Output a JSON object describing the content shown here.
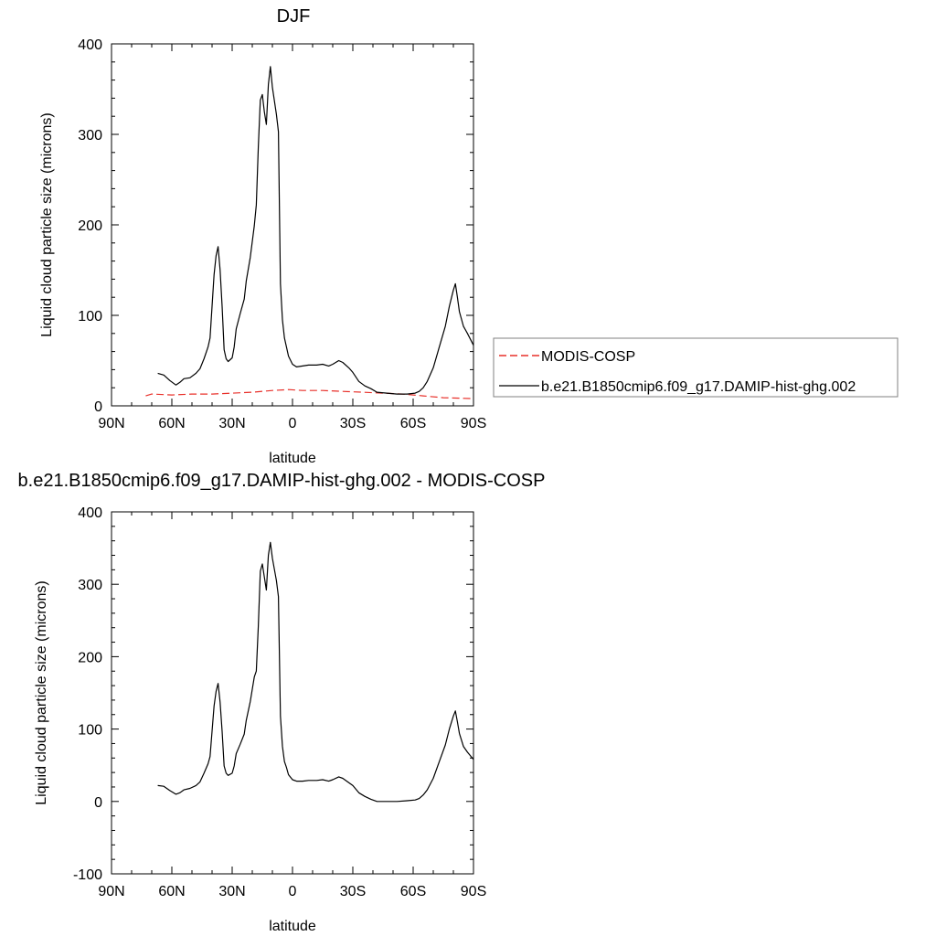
{
  "chart_data": [
    {
      "type": "line",
      "title": "DJF",
      "xlabel": "latitude",
      "ylabel": "Liquid cloud particle size (microns)",
      "xlim": [
        -90,
        90
      ],
      "ylim": [
        0,
        400
      ],
      "x_ticks": [
        -90,
        -60,
        -30,
        0,
        30,
        60,
        90
      ],
      "x_tick_labels": [
        "90N",
        "60N",
        "30N",
        "0",
        "30S",
        "60S",
        "90S"
      ],
      "y_ticks": [
        0,
        100,
        200,
        300,
        400
      ],
      "y_tick_labels": [
        "0",
        "100",
        "200",
        "300",
        "400"
      ],
      "legend": "outside-right",
      "series": [
        {
          "name": "MODIS-COSP",
          "color": "#e8302a",
          "style": "dashed",
          "points": [
            [
              -73,
              11
            ],
            [
              -70,
              13
            ],
            [
              -60,
              12
            ],
            [
              -50,
              13
            ],
            [
              -40,
              13
            ],
            [
              -30,
              14
            ],
            [
              -20,
              15
            ],
            [
              -10,
              17
            ],
            [
              -2,
              18
            ],
            [
              5,
              17
            ],
            [
              15,
              17
            ],
            [
              25,
              16
            ],
            [
              35,
              15
            ],
            [
              45,
              14
            ],
            [
              55,
              13
            ],
            [
              65,
              11
            ],
            [
              75,
              9
            ],
            [
              90,
              8
            ]
          ]
        },
        {
          "name": "b.e21.B1850cmip6.f09_g17.DAMIP-hist-ghg.002",
          "color": "#000000",
          "style": "solid",
          "points": [
            [
              -67,
              36
            ],
            [
              -64,
              34
            ],
            [
              -61,
              28
            ],
            [
              -58,
              23
            ],
            [
              -56,
              26
            ],
            [
              -54,
              30
            ],
            [
              -51,
              31
            ],
            [
              -48,
              36
            ],
            [
              -46,
              41
            ],
            [
              -44,
              52
            ],
            [
              -42,
              65
            ],
            [
              -41,
              75
            ],
            [
              -40,
              110
            ],
            [
              -39,
              145
            ],
            [
              -38,
              166
            ],
            [
              -37,
              176
            ],
            [
              -36,
              150
            ],
            [
              -35,
              110
            ],
            [
              -34,
              62
            ],
            [
              -33,
              52
            ],
            [
              -32,
              49
            ],
            [
              -30,
              53
            ],
            [
              -29,
              65
            ],
            [
              -28,
              85
            ],
            [
              -26,
              102
            ],
            [
              -24,
              118
            ],
            [
              -23,
              138
            ],
            [
              -21,
              164
            ],
            [
              -19,
              199
            ],
            [
              -18,
              222
            ],
            [
              -17,
              286
            ],
            [
              -16,
              338
            ],
            [
              -15,
              344
            ],
            [
              -14,
              325
            ],
            [
              -13,
              311
            ],
            [
              -12,
              355
            ],
            [
              -11,
              375
            ],
            [
              -10,
              352
            ],
            [
              -8,
              322
            ],
            [
              -7,
              303
            ],
            [
              -6,
              135
            ],
            [
              -5,
              95
            ],
            [
              -4,
              75
            ],
            [
              -3,
              65
            ],
            [
              -2,
              55
            ],
            [
              0,
              46
            ],
            [
              2,
              43
            ],
            [
              5,
              44
            ],
            [
              8,
              45
            ],
            [
              12,
              45
            ],
            [
              15,
              46
            ],
            [
              18,
              44
            ],
            [
              20,
              46
            ],
            [
              23,
              50
            ],
            [
              25,
              48
            ],
            [
              28,
              42
            ],
            [
              30,
              37
            ],
            [
              33,
              27
            ],
            [
              36,
              22
            ],
            [
              39,
              19
            ],
            [
              42,
              15
            ],
            [
              47,
              14
            ],
            [
              52,
              13
            ],
            [
              57,
              13
            ],
            [
              61,
              14
            ],
            [
              63,
              16
            ],
            [
              65,
              20
            ],
            [
              67,
              27
            ],
            [
              70,
              42
            ],
            [
              73,
              65
            ],
            [
              76,
              88
            ],
            [
              78,
              110
            ],
            [
              80,
              128
            ],
            [
              81,
              135
            ],
            [
              82,
              120
            ],
            [
              83,
              104
            ],
            [
              85,
              88
            ],
            [
              87,
              80
            ],
            [
              90,
              67
            ]
          ]
        }
      ]
    },
    {
      "type": "line",
      "title": "b.e21.B1850cmip6.f09_g17.DAMIP-hist-ghg.002 - MODIS-COSP",
      "xlabel": "latitude",
      "ylabel": "Liquid cloud particle size (microns)",
      "xlim": [
        -90,
        90
      ],
      "ylim": [
        -100,
        400
      ],
      "x_ticks": [
        -90,
        -60,
        -30,
        0,
        30,
        60,
        90
      ],
      "x_tick_labels": [
        "90N",
        "60N",
        "30N",
        "0",
        "30S",
        "60S",
        "90S"
      ],
      "y_ticks": [
        -100,
        0,
        100,
        200,
        300,
        400
      ],
      "y_tick_labels": [
        "-100",
        "0",
        "100",
        "200",
        "300",
        "400"
      ],
      "series": [
        {
          "color": "#000000",
          "style": "solid",
          "points": [
            [
              -67,
              22
            ],
            [
              -64,
              21
            ],
            [
              -61,
              15
            ],
            [
              -58,
              10
            ],
            [
              -56,
              12
            ],
            [
              -54,
              16
            ],
            [
              -51,
              18
            ],
            [
              -48,
              22
            ],
            [
              -46,
              27
            ],
            [
              -44,
              39
            ],
            [
              -42,
              52
            ],
            [
              -41,
              62
            ],
            [
              -40,
              97
            ],
            [
              -39,
              132
            ],
            [
              -38,
              152
            ],
            [
              -37,
              163
            ],
            [
              -36,
              137
            ],
            [
              -35,
              97
            ],
            [
              -34,
              49
            ],
            [
              -33,
              39
            ],
            [
              -32,
              36
            ],
            [
              -30,
              39
            ],
            [
              -29,
              49
            ],
            [
              -28,
              66
            ],
            [
              -26,
              79
            ],
            [
              -24,
              93
            ],
            [
              -23,
              112
            ],
            [
              -21,
              138
            ],
            [
              -19,
              172
            ],
            [
              -18,
              180
            ],
            [
              -17,
              242
            ],
            [
              -16,
              318
            ],
            [
              -15,
              328
            ],
            [
              -14,
              310
            ],
            [
              -13,
              292
            ],
            [
              -12,
              340
            ],
            [
              -11,
              358
            ],
            [
              -10,
              336
            ],
            [
              -8,
              305
            ],
            [
              -7,
              283
            ],
            [
              -6,
              118
            ],
            [
              -5,
              76
            ],
            [
              -4,
              55
            ],
            [
              -3,
              47
            ],
            [
              -2,
              37
            ],
            [
              0,
              30
            ],
            [
              2,
              28
            ],
            [
              5,
              28
            ],
            [
              8,
              29
            ],
            [
              12,
              29
            ],
            [
              15,
              30
            ],
            [
              18,
              28
            ],
            [
              20,
              30
            ],
            [
              23,
              34
            ],
            [
              25,
              32
            ],
            [
              28,
              26
            ],
            [
              30,
              22
            ],
            [
              33,
              12
            ],
            [
              36,
              7
            ],
            [
              39,
              3
            ],
            [
              42,
              0
            ],
            [
              47,
              0
            ],
            [
              52,
              0
            ],
            [
              57,
              1
            ],
            [
              61,
              2
            ],
            [
              63,
              4
            ],
            [
              65,
              9
            ],
            [
              67,
              16
            ],
            [
              70,
              32
            ],
            [
              73,
              55
            ],
            [
              76,
              78
            ],
            [
              78,
              100
            ],
            [
              80,
              118
            ],
            [
              81,
              125
            ],
            [
              82,
              110
            ],
            [
              83,
              94
            ],
            [
              85,
              76
            ],
            [
              87,
              68
            ],
            [
              90,
              58
            ]
          ]
        }
      ]
    }
  ]
}
